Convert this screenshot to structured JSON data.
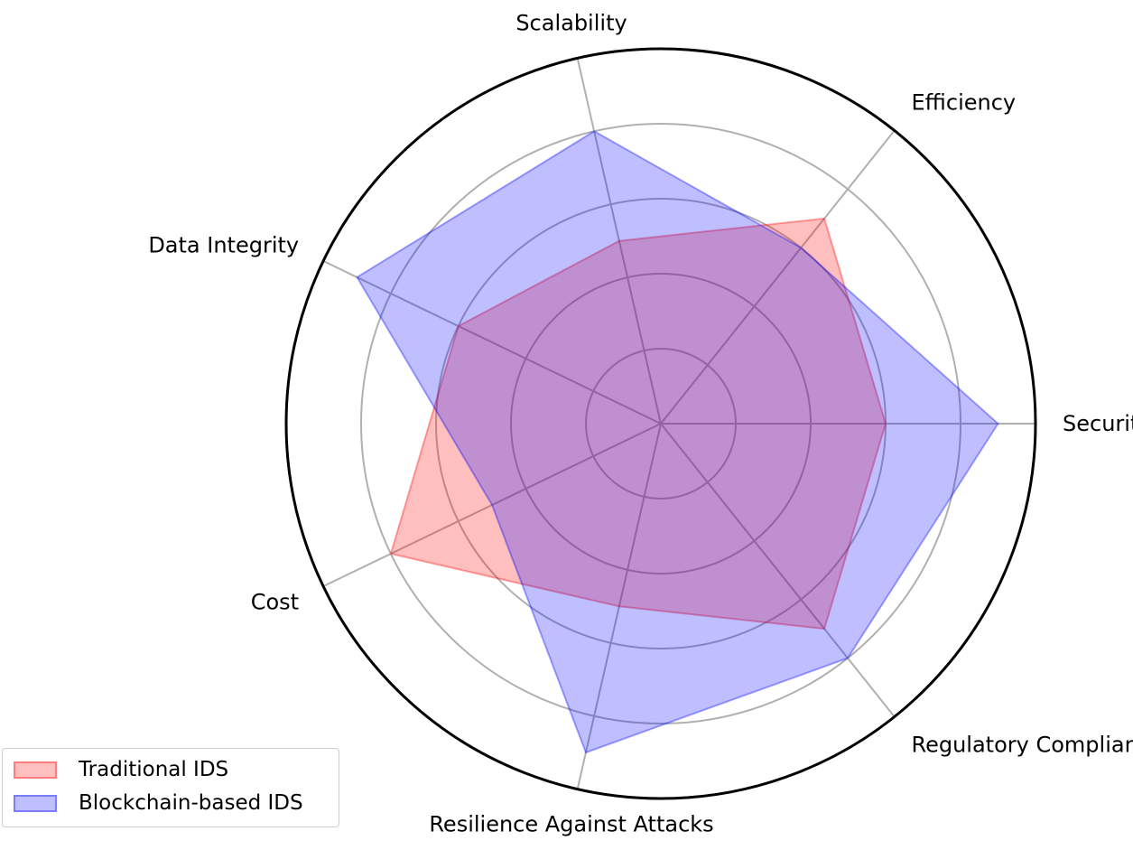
{
  "chart_data": {
    "type": "radar",
    "categories": [
      "Security",
      "Efficiency",
      "Scalability",
      "Data Integrity",
      "Cost",
      "Resilience Against Attacks",
      "Regulatory Compliance"
    ],
    "rlim": [
      0,
      10
    ],
    "rticks": [
      2,
      4,
      6,
      8
    ],
    "grid": true,
    "legend_position": "lower-left",
    "series": [
      {
        "name": "Traditional IDS",
        "values": [
          6,
          7,
          5,
          6,
          8,
          5,
          7
        ],
        "color": "#ff0000"
      },
      {
        "name": "Blockchain-based IDS",
        "values": [
          9,
          6,
          8,
          9,
          5,
          9,
          8
        ],
        "color": "#0000ff"
      }
    ]
  }
}
